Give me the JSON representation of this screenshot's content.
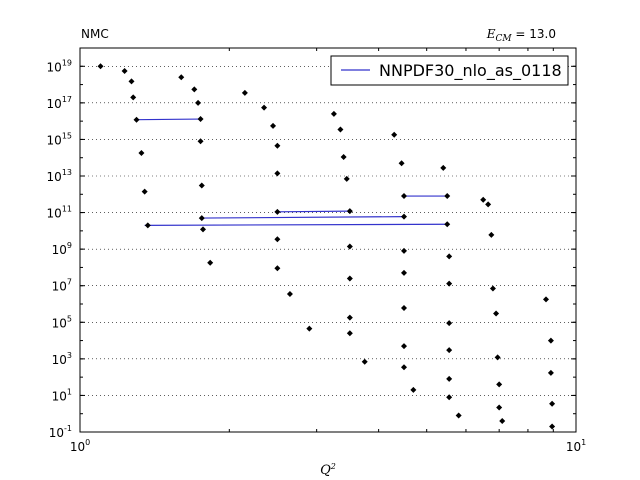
{
  "chart_data": {
    "type": "scatter",
    "title_left": "NMC",
    "title_right_symbol": "E",
    "title_right_subscript": "CM",
    "title_right_value": " = 13.0",
    "xlabel": "Q",
    "xlabel_sup": "2",
    "ylabel": "",
    "x_scale": "log",
    "y_scale": "log",
    "xlim": [
      1,
      10
    ],
    "ylim": [
      0.1,
      1e+20
    ],
    "grid": "horizontal dotted",
    "legend_position": "top-right",
    "x_ticks": [
      {
        "base": "10",
        "exp": "0"
      },
      {
        "base": "10",
        "exp": "1"
      }
    ],
    "y_ticks": [
      {
        "base": "10",
        "exp": "-1"
      },
      {
        "base": "10",
        "exp": "1"
      },
      {
        "base": "10",
        "exp": "3"
      },
      {
        "base": "10",
        "exp": "5"
      },
      {
        "base": "10",
        "exp": "7"
      },
      {
        "base": "10",
        "exp": "9"
      },
      {
        "base": "10",
        "exp": "11"
      },
      {
        "base": "10",
        "exp": "13"
      },
      {
        "base": "10",
        "exp": "15"
      },
      {
        "base": "10",
        "exp": "17"
      },
      {
        "base": "10",
        "exp": "19"
      }
    ],
    "series": [
      {
        "name": "NNPDF30_nlo_as_0118",
        "color": "#3333cc",
        "kind": "line-segments"
      }
    ],
    "segments": [
      {
        "x": [
          1.3,
          1.75
        ],
        "y": [
          1.2e+16,
          1.3e+16
        ]
      },
      {
        "x": [
          1.75,
          4.5
        ],
        "y": [
          50000000000.0,
          60000000000.0
        ]
      },
      {
        "x": [
          2.5,
          3.5
        ],
        "y": [
          110000000000.0,
          120000000000.0
        ]
      },
      {
        "x": [
          4.5,
          5.5
        ],
        "y": [
          800000000000.0,
          800000000000.0
        ]
      },
      {
        "x": [
          1.35,
          5.5
        ],
        "y": [
          20000000000.0,
          23000000000.0
        ]
      }
    ],
    "points": [
      {
        "x": 1.1,
        "y": 1e+19
      },
      {
        "x": 1.23,
        "y": 5.5e+18
      },
      {
        "x": 1.27,
        "y": 1.5e+18
      },
      {
        "x": 1.28,
        "y": 2e+17
      },
      {
        "x": 1.3,
        "y": 1.2e+16
      },
      {
        "x": 1.33,
        "y": 180000000000000.0
      },
      {
        "x": 1.35,
        "y": 1400000000000.0
      },
      {
        "x": 1.37,
        "y": 20000000000.0
      },
      {
        "x": 1.6,
        "y": 2.5e+18
      },
      {
        "x": 1.7,
        "y": 5.5e+17
      },
      {
        "x": 1.73,
        "y": 1e+17
      },
      {
        "x": 1.75,
        "y": 1.3e+16
      },
      {
        "x": 1.75,
        "y": 800000000000000.0
      },
      {
        "x": 1.76,
        "y": 3000000000000.0
      },
      {
        "x": 1.76,
        "y": 50000000000.0
      },
      {
        "x": 1.77,
        "y": 12000000000.0
      },
      {
        "x": 1.83,
        "y": 180000000.0
      },
      {
        "x": 2.15,
        "y": 3.5e+17
      },
      {
        "x": 2.35,
        "y": 5.5e+16
      },
      {
        "x": 2.45,
        "y": 5500000000000000.0
      },
      {
        "x": 2.5,
        "y": 450000000000000.0
      },
      {
        "x": 2.5,
        "y": 14000000000000.0
      },
      {
        "x": 2.5,
        "y": 110000000000.0
      },
      {
        "x": 2.5,
        "y": 3500000000.0
      },
      {
        "x": 2.5,
        "y": 90000000.0
      },
      {
        "x": 2.65,
        "y": 3500000.0
      },
      {
        "x": 2.9,
        "y": 45000.0
      },
      {
        "x": 3.25,
        "y": 2.5e+16
      },
      {
        "x": 3.35,
        "y": 3500000000000000.0
      },
      {
        "x": 3.4,
        "y": 110000000000000.0
      },
      {
        "x": 3.45,
        "y": 7000000000000.0
      },
      {
        "x": 3.5,
        "y": 120000000000.0
      },
      {
        "x": 3.5,
        "y": 1400000000.0
      },
      {
        "x": 3.5,
        "y": 25000000.0
      },
      {
        "x": 3.5,
        "y": 180000.0
      },
      {
        "x": 3.5,
        "y": 25000.0
      },
      {
        "x": 3.75,
        "y": 700
      },
      {
        "x": 4.3,
        "y": 1800000000000000.0
      },
      {
        "x": 4.45,
        "y": 50000000000000.0
      },
      {
        "x": 4.5,
        "y": 800000000000.0
      },
      {
        "x": 4.5,
        "y": 60000000000.0
      },
      {
        "x": 4.5,
        "y": 800000000.0
      },
      {
        "x": 4.5,
        "y": 50000000.0
      },
      {
        "x": 4.5,
        "y": 600000.0
      },
      {
        "x": 4.5,
        "y": 5000
      },
      {
        "x": 4.5,
        "y": 350
      },
      {
        "x": 4.7,
        "y": 20
      },
      {
        "x": 5.4,
        "y": 28000000000000.0
      },
      {
        "x": 5.5,
        "y": 800000000000.0
      },
      {
        "x": 5.5,
        "y": 23000000000.0
      },
      {
        "x": 5.55,
        "y": 400000000.0
      },
      {
        "x": 5.55,
        "y": 13000000.0
      },
      {
        "x": 5.55,
        "y": 90000.0
      },
      {
        "x": 5.55,
        "y": 3000
      },
      {
        "x": 5.55,
        "y": 80
      },
      {
        "x": 5.55,
        "y": 8
      },
      {
        "x": 5.8,
        "y": 0.8
      },
      {
        "x": 6.5,
        "y": 500000000000.0
      },
      {
        "x": 6.65,
        "y": 280000000000.0
      },
      {
        "x": 6.75,
        "y": 6000000000.0
      },
      {
        "x": 6.8,
        "y": 7000000.0
      },
      {
        "x": 6.9,
        "y": 300000.0
      },
      {
        "x": 6.95,
        "y": 1200
      },
      {
        "x": 7.0,
        "y": 40
      },
      {
        "x": 7.0,
        "y": 2.2
      },
      {
        "x": 7.1,
        "y": 0.4
      },
      {
        "x": 8.7,
        "y": 1800000.0
      },
      {
        "x": 8.9,
        "y": 10000.0
      },
      {
        "x": 8.9,
        "y": 170
      },
      {
        "x": 8.95,
        "y": 3.5
      },
      {
        "x": 8.95,
        "y": 0.2
      }
    ]
  }
}
